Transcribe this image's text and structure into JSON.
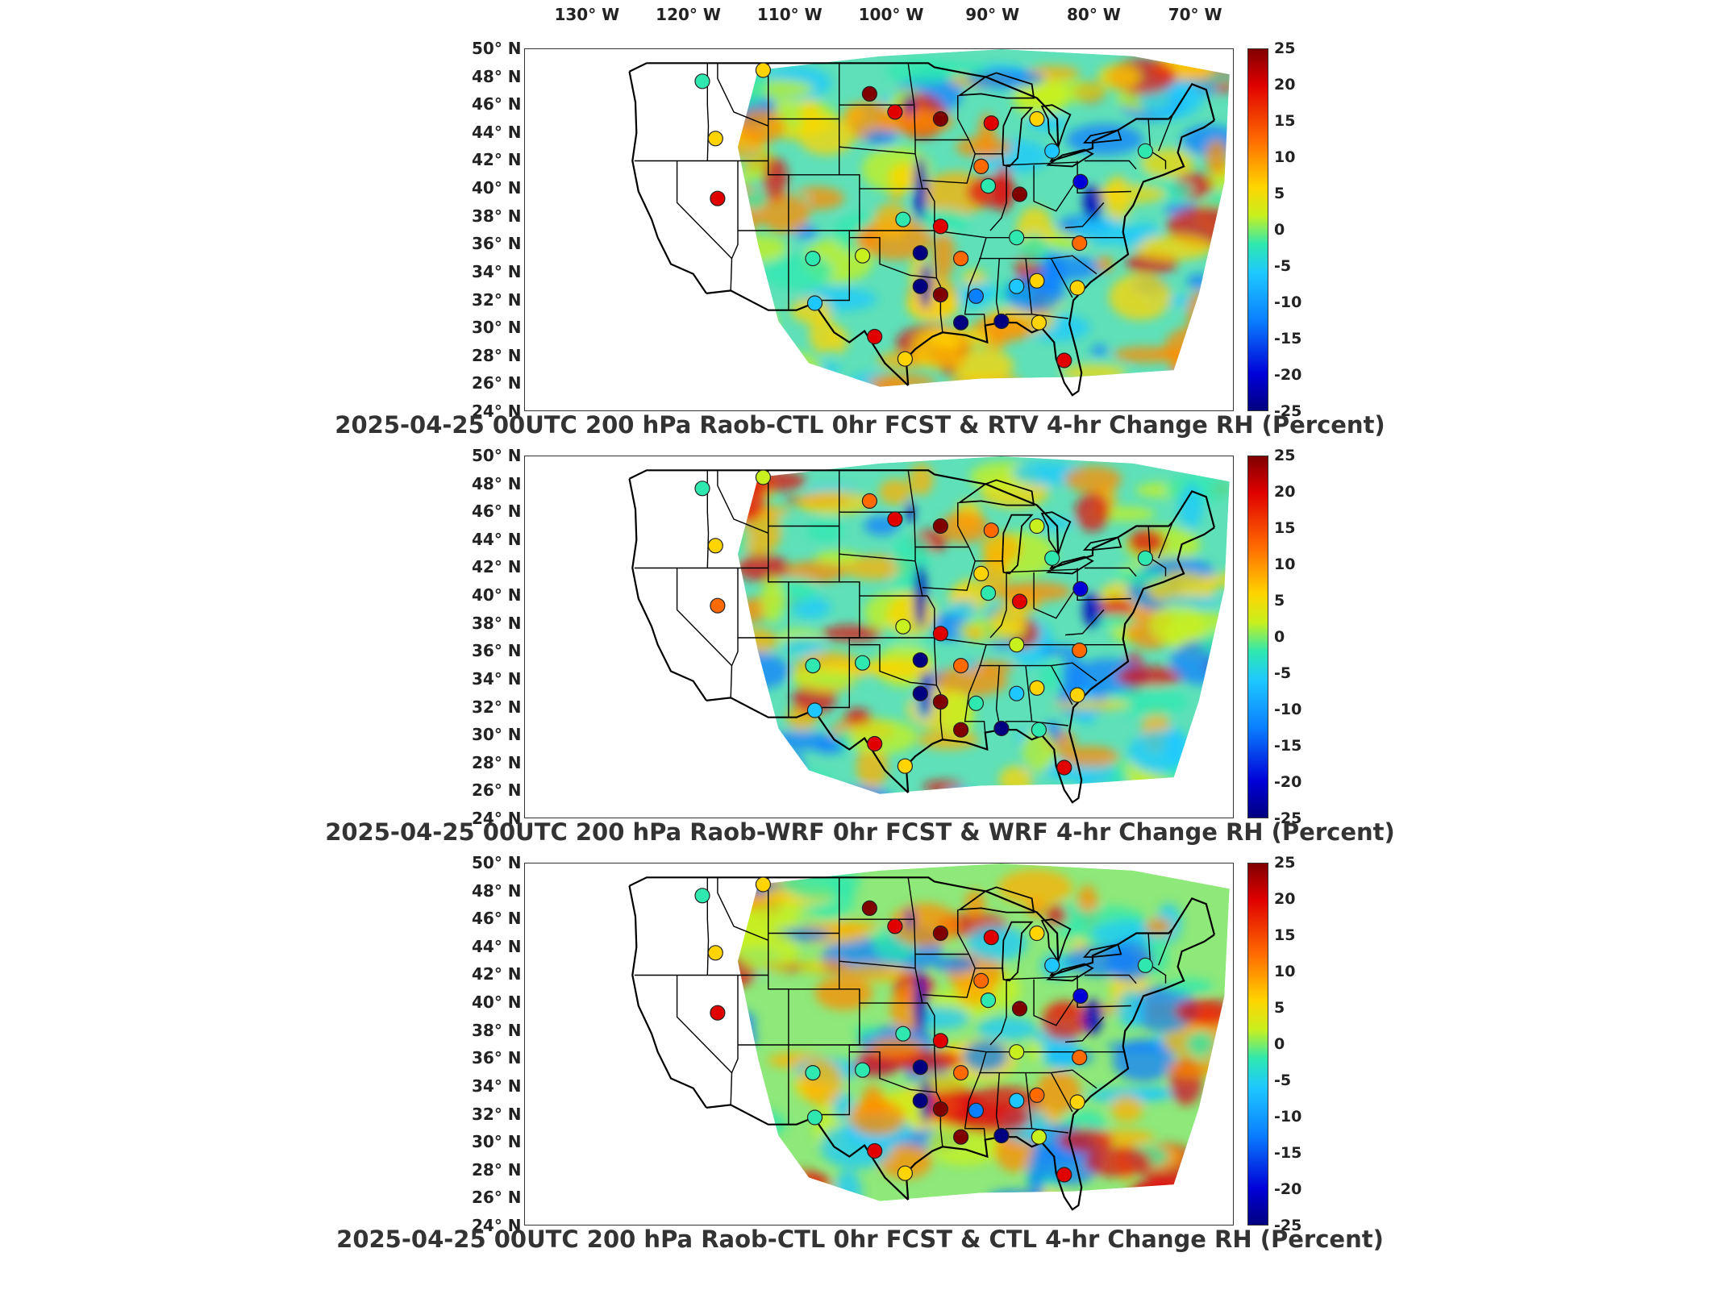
{
  "lon_labels": [
    "130° W",
    "120° W",
    "110° W",
    "100° W",
    "90° W",
    "80° W",
    "70° W"
  ],
  "lat_labels": [
    "50° N",
    "48° N",
    "46° N",
    "44° N",
    "42° N",
    "40° N",
    "38° N",
    "36° N",
    "34° N",
    "32° N",
    "30° N",
    "28° N",
    "26° N",
    "24° N"
  ],
  "colorbar_ticks": [
    "25",
    "20",
    "15",
    "10",
    "5",
    "0",
    "-5",
    "-10",
    "-15",
    "-20",
    "-25"
  ],
  "colormap": [
    "#800000",
    "#e00000",
    "#ff6a00",
    "#ffd400",
    "#c8f01e",
    "#2ee8b0",
    "#1ec8ff",
    "#0a80ff",
    "#0000d8",
    "#000080"
  ],
  "panels": [
    {
      "title": "2025-04-25 00UTC 200 hPa Raob-CTL 0hr FCST & RTV 4-hr Change RH (Percent)"
    },
    {
      "title": "2025-04-25 00UTC 200 hPa Raob-WRF 0hr FCST & WRF 4-hr Change RH (Percent)"
    },
    {
      "title": "2025-04-25 00UTC 200 hPa Raob-CTL 0hr FCST & CTL 4-hr Change RH (Percent)"
    }
  ],
  "stations": [
    {
      "lon": -117.5,
      "lat": 47.7,
      "v": [
        0,
        -3,
        -2
      ]
    },
    {
      "lon": -111.5,
      "lat": 48.5,
      "v": [
        6,
        2,
        7
      ]
    },
    {
      "lon": -101.0,
      "lat": 46.8,
      "v": [
        22,
        15,
        22
      ]
    },
    {
      "lon": -98.5,
      "lat": 45.5,
      "v": [
        20,
        20,
        20
      ]
    },
    {
      "lon": -94.0,
      "lat": 45.0,
      "v": [
        22,
        22,
        22
      ]
    },
    {
      "lon": -89.0,
      "lat": 44.7,
      "v": [
        18,
        15,
        20
      ]
    },
    {
      "lon": -84.5,
      "lat": 45.0,
      "v": [
        8,
        3,
        6
      ]
    },
    {
      "lon": -83.0,
      "lat": 42.7,
      "v": [
        -8,
        -2,
        -8
      ]
    },
    {
      "lon": -73.8,
      "lat": 42.7,
      "v": [
        0,
        -3,
        -3
      ]
    },
    {
      "lon": -116.2,
      "lat": 43.6,
      "v": [
        6,
        7,
        6
      ]
    },
    {
      "lon": -90.0,
      "lat": 41.6,
      "v": [
        14,
        10,
        12
      ]
    },
    {
      "lon": -89.3,
      "lat": 40.2,
      "v": [
        0,
        0,
        -2
      ]
    },
    {
      "lon": -86.2,
      "lat": 39.6,
      "v": [
        22,
        20,
        22
      ]
    },
    {
      "lon": -80.2,
      "lat": 40.5,
      "v": [
        -15,
        -15,
        -15
      ]
    },
    {
      "lon": -116.0,
      "lat": 39.3,
      "v": [
        18,
        12,
        18
      ]
    },
    {
      "lon": -97.7,
      "lat": 37.8,
      "v": [
        -2,
        4,
        0
      ]
    },
    {
      "lon": -94.0,
      "lat": 37.3,
      "v": [
        20,
        16,
        20
      ]
    },
    {
      "lon": -86.5,
      "lat": 36.5,
      "v": [
        -2,
        4,
        1
      ]
    },
    {
      "lon": -80.3,
      "lat": 36.1,
      "v": [
        14,
        12,
        14
      ]
    },
    {
      "lon": -92.0,
      "lat": 35.0,
      "v": [
        14,
        14,
        14
      ]
    },
    {
      "lon": -96.0,
      "lat": 35.4,
      "v": [
        -25,
        -25,
        -25
      ]
    },
    {
      "lon": -106.6,
      "lat": 35.0,
      "v": [
        -2,
        -3,
        -2
      ]
    },
    {
      "lon": -101.7,
      "lat": 35.2,
      "v": [
        2,
        0,
        0
      ]
    },
    {
      "lon": -96.0,
      "lat": 33.0,
      "v": [
        -22,
        -20,
        -22
      ]
    },
    {
      "lon": -94.0,
      "lat": 32.4,
      "v": [
        22,
        22,
        22
      ]
    },
    {
      "lon": -90.5,
      "lat": 32.3,
      "v": [
        -12,
        -4,
        -12
      ]
    },
    {
      "lon": -86.5,
      "lat": 33.0,
      "v": [
        -8,
        -6,
        -6
      ]
    },
    {
      "lon": -84.5,
      "lat": 33.4,
      "v": [
        8,
        8,
        14
      ]
    },
    {
      "lon": -80.5,
      "lat": 32.9,
      "v": [
        6,
        6,
        6
      ]
    },
    {
      "lon": -106.4,
      "lat": 31.8,
      "v": [
        -5,
        -5,
        -4
      ]
    },
    {
      "lon": -92.0,
      "lat": 30.4,
      "v": [
        -25,
        22,
        22
      ]
    },
    {
      "lon": -88.0,
      "lat": 30.5,
      "v": [
        -25,
        -22,
        -25
      ]
    },
    {
      "lon": -84.3,
      "lat": 30.4,
      "v": [
        6,
        0,
        3
      ]
    },
    {
      "lon": -100.5,
      "lat": 29.4,
      "v": [
        20,
        20,
        20
      ]
    },
    {
      "lon": -97.5,
      "lat": 27.8,
      "v": [
        6,
        6,
        6
      ]
    },
    {
      "lon": -81.8,
      "lat": 27.7,
      "v": [
        20,
        20,
        20
      ]
    }
  ]
}
